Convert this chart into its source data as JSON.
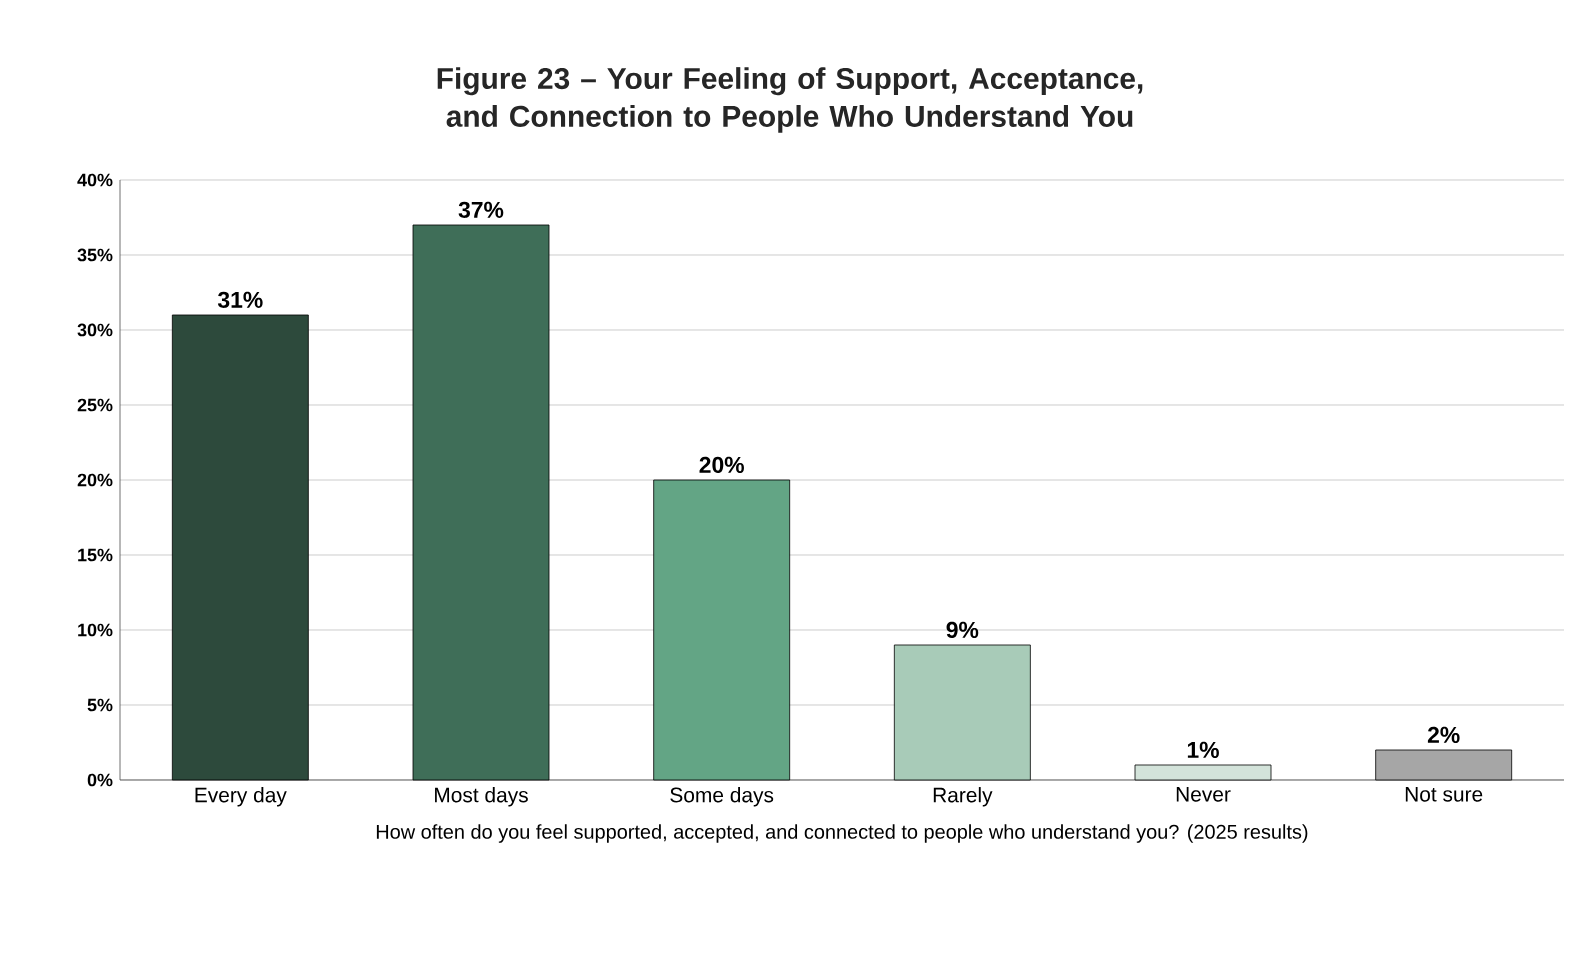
{
  "chart_data": {
    "type": "bar",
    "title": "Figure 23 – Your Feeling of Support, Acceptance, and Connection to People Who Understand You",
    "xlabel": "How often do you feel supported, accepted, and connected to people who understand you? (2025 results)",
    "categories": [
      "Every day",
      "Most days",
      "Some days",
      "Rarely",
      "Never",
      "Not sure"
    ],
    "values": [
      31,
      37,
      20,
      9,
      1,
      2
    ],
    "value_labels": [
      "31%",
      "37%",
      "20%",
      "9%",
      "1%",
      "2%"
    ],
    "colors": [
      "#2d4a3c",
      "#3f6e58",
      "#63a585",
      "#a8cbb8",
      "#d3e3da",
      "#a6a6a6"
    ],
    "ylim": [
      0,
      40
    ],
    "yticks": [
      {
        "value": 0,
        "label": "0%"
      },
      {
        "value": 5,
        "label": "5%"
      },
      {
        "value": 10,
        "label": "10%"
      },
      {
        "value": 15,
        "label": "15%"
      },
      {
        "value": 20,
        "label": "20%"
      },
      {
        "value": 25,
        "label": "25%"
      },
      {
        "value": 30,
        "label": "30%"
      },
      {
        "value": 35,
        "label": "35%"
      },
      {
        "value": 40,
        "label": "40%"
      }
    ],
    "grid": "y"
  }
}
